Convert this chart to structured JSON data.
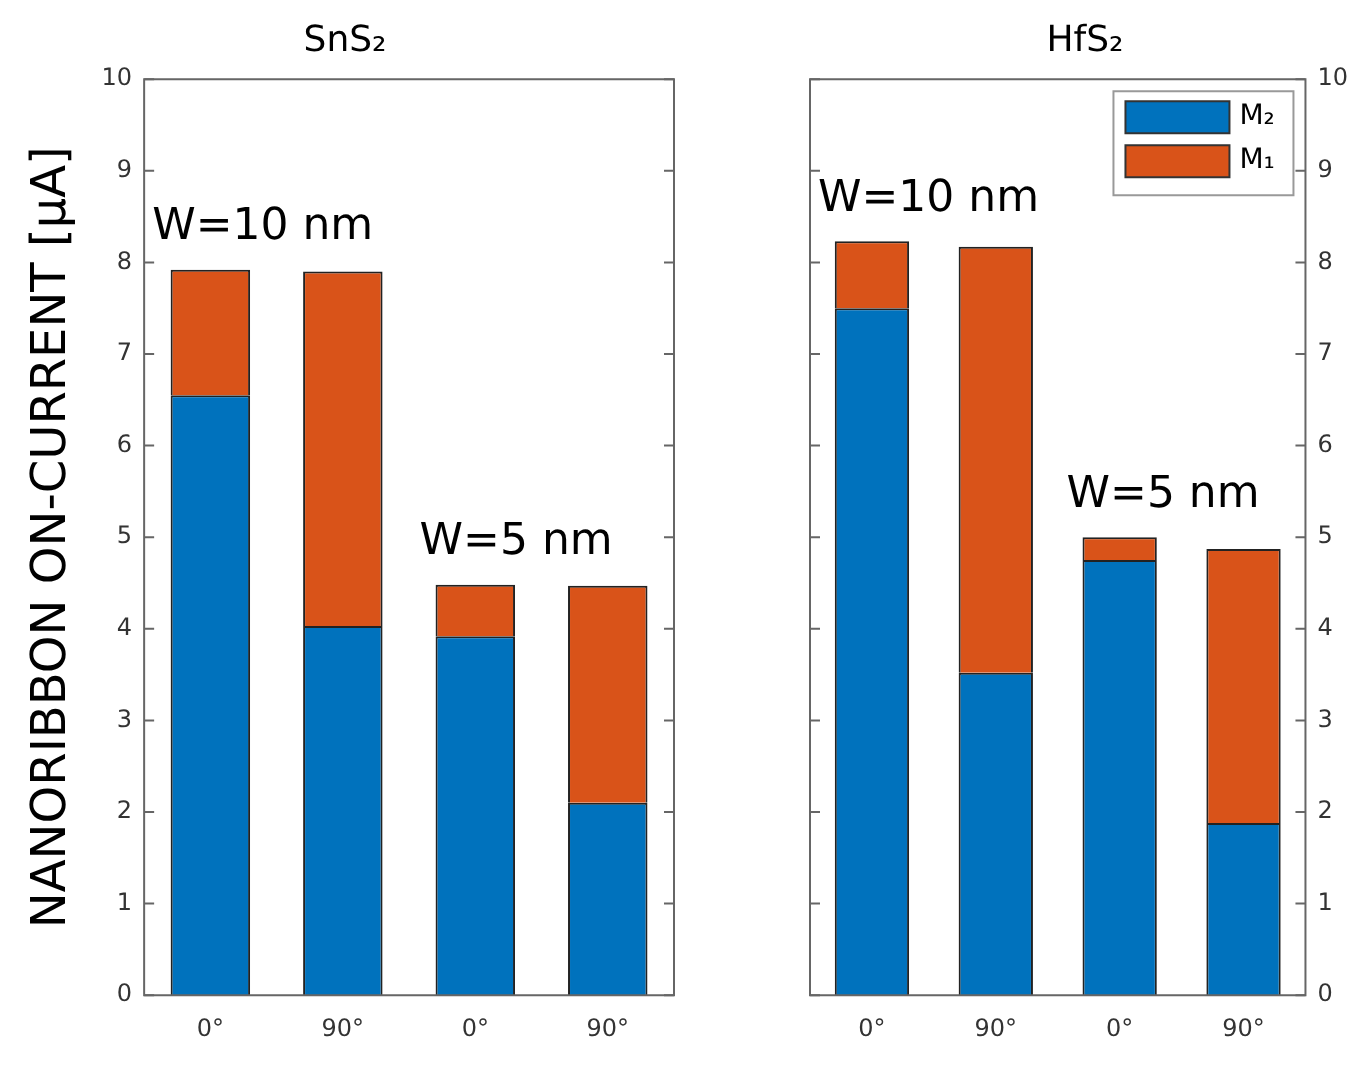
{
  "chart_data": [
    {
      "type": "bar",
      "title": "SnS₂",
      "ylabel": "NANORIBBON ON-CURRENT [μA]",
      "categories": [
        "0°",
        "90°",
        "0°",
        "90°"
      ],
      "stacked": true,
      "series": [
        {
          "color": "#0072bd",
          "values": [
            6.55,
            4.03,
            3.92,
            2.1
          ]
        },
        {
          "color": "#d95319",
          "values": [
            1.37,
            3.87,
            0.56,
            2.37
          ]
        }
      ],
      "ylim": [
        0,
        10
      ],
      "yticks": [
        0,
        1,
        2,
        3,
        4,
        5,
        6,
        7,
        8,
        9,
        10
      ],
      "grid": false,
      "legend": false,
      "annotations": [
        "W=10 nm",
        "W=5 nm"
      ]
    },
    {
      "type": "bar",
      "title": "HfS₂",
      "categories": [
        "0°",
        "90°",
        "0°",
        "90°"
      ],
      "stacked": true,
      "series": [
        {
          "name": "M₂",
          "color": "#0072bd",
          "values": [
            7.5,
            3.52,
            4.75,
            1.88
          ]
        },
        {
          "name": "M₁",
          "color": "#d95319",
          "values": [
            0.73,
            4.65,
            0.25,
            2.99
          ]
        }
      ],
      "ylim": [
        0,
        10
      ],
      "yticks": [
        0,
        1,
        2,
        3,
        4,
        5,
        6,
        7,
        8,
        9,
        10
      ],
      "grid": false,
      "legend": "top right",
      "annotations": [
        "W=10 nm",
        "W=5 nm"
      ]
    }
  ]
}
